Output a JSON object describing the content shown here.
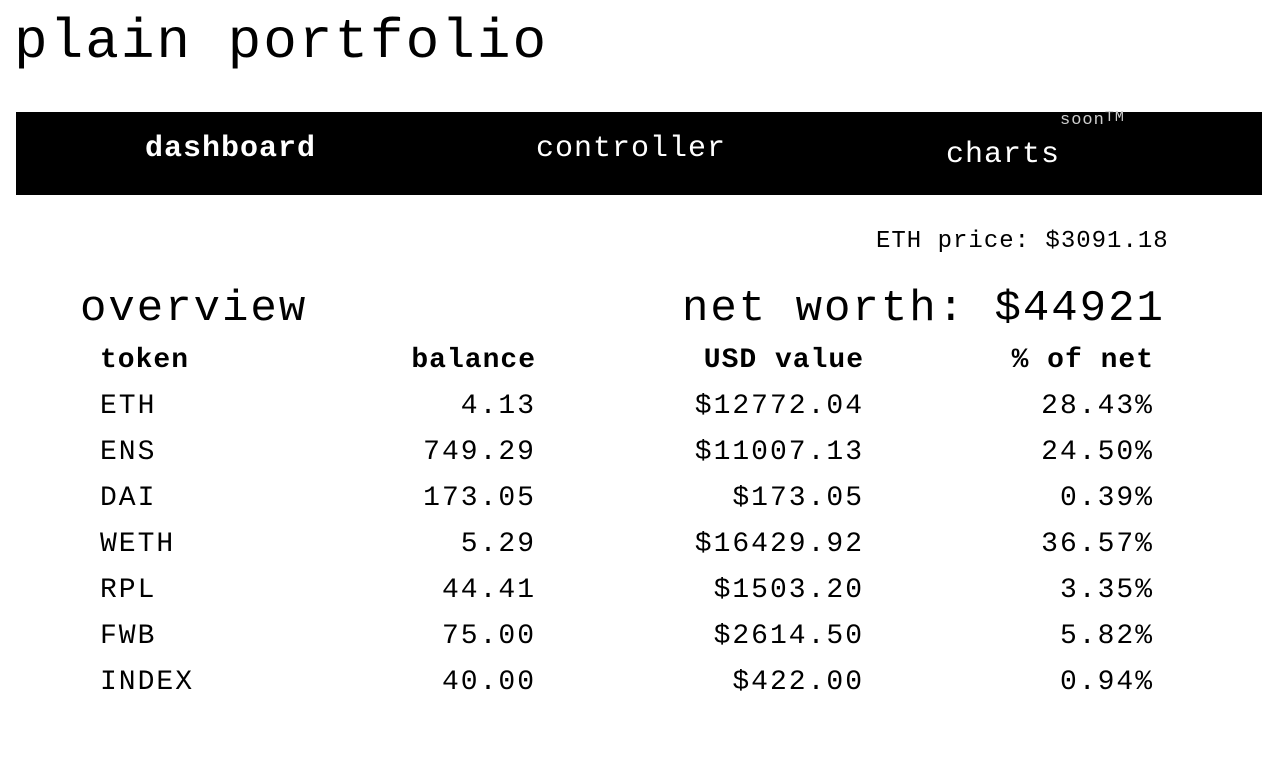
{
  "app": {
    "title": "plain portfolio"
  },
  "nav": {
    "items": [
      {
        "label": "dashboard"
      },
      {
        "label": "controller"
      },
      {
        "label": "charts",
        "superscript": "soon",
        "trademark": "TM"
      }
    ]
  },
  "eth_price": "ETH price: $3091.18",
  "overview": {
    "title": "overview",
    "net_worth": "net worth: $44921",
    "columns": [
      "token",
      "balance",
      "USD value",
      "% of net"
    ],
    "rows": [
      {
        "token": "ETH",
        "balance": "4.13",
        "usd": "$12772.04",
        "pct": "28.43%"
      },
      {
        "token": "ENS",
        "balance": "749.29",
        "usd": "$11007.13",
        "pct": "24.50%"
      },
      {
        "token": "DAI",
        "balance": "173.05",
        "usd": "$173.05",
        "pct": "0.39%"
      },
      {
        "token": "WETH",
        "balance": "5.29",
        "usd": "$16429.92",
        "pct": "36.57%"
      },
      {
        "token": "RPL",
        "balance": "44.41",
        "usd": "$1503.20",
        "pct": "3.35%"
      },
      {
        "token": "FWB",
        "balance": "75.00",
        "usd": "$2614.50",
        "pct": "5.82%"
      },
      {
        "token": "INDEX",
        "balance": "40.00",
        "usd": "$422.00",
        "pct": "0.94%"
      }
    ]
  }
}
